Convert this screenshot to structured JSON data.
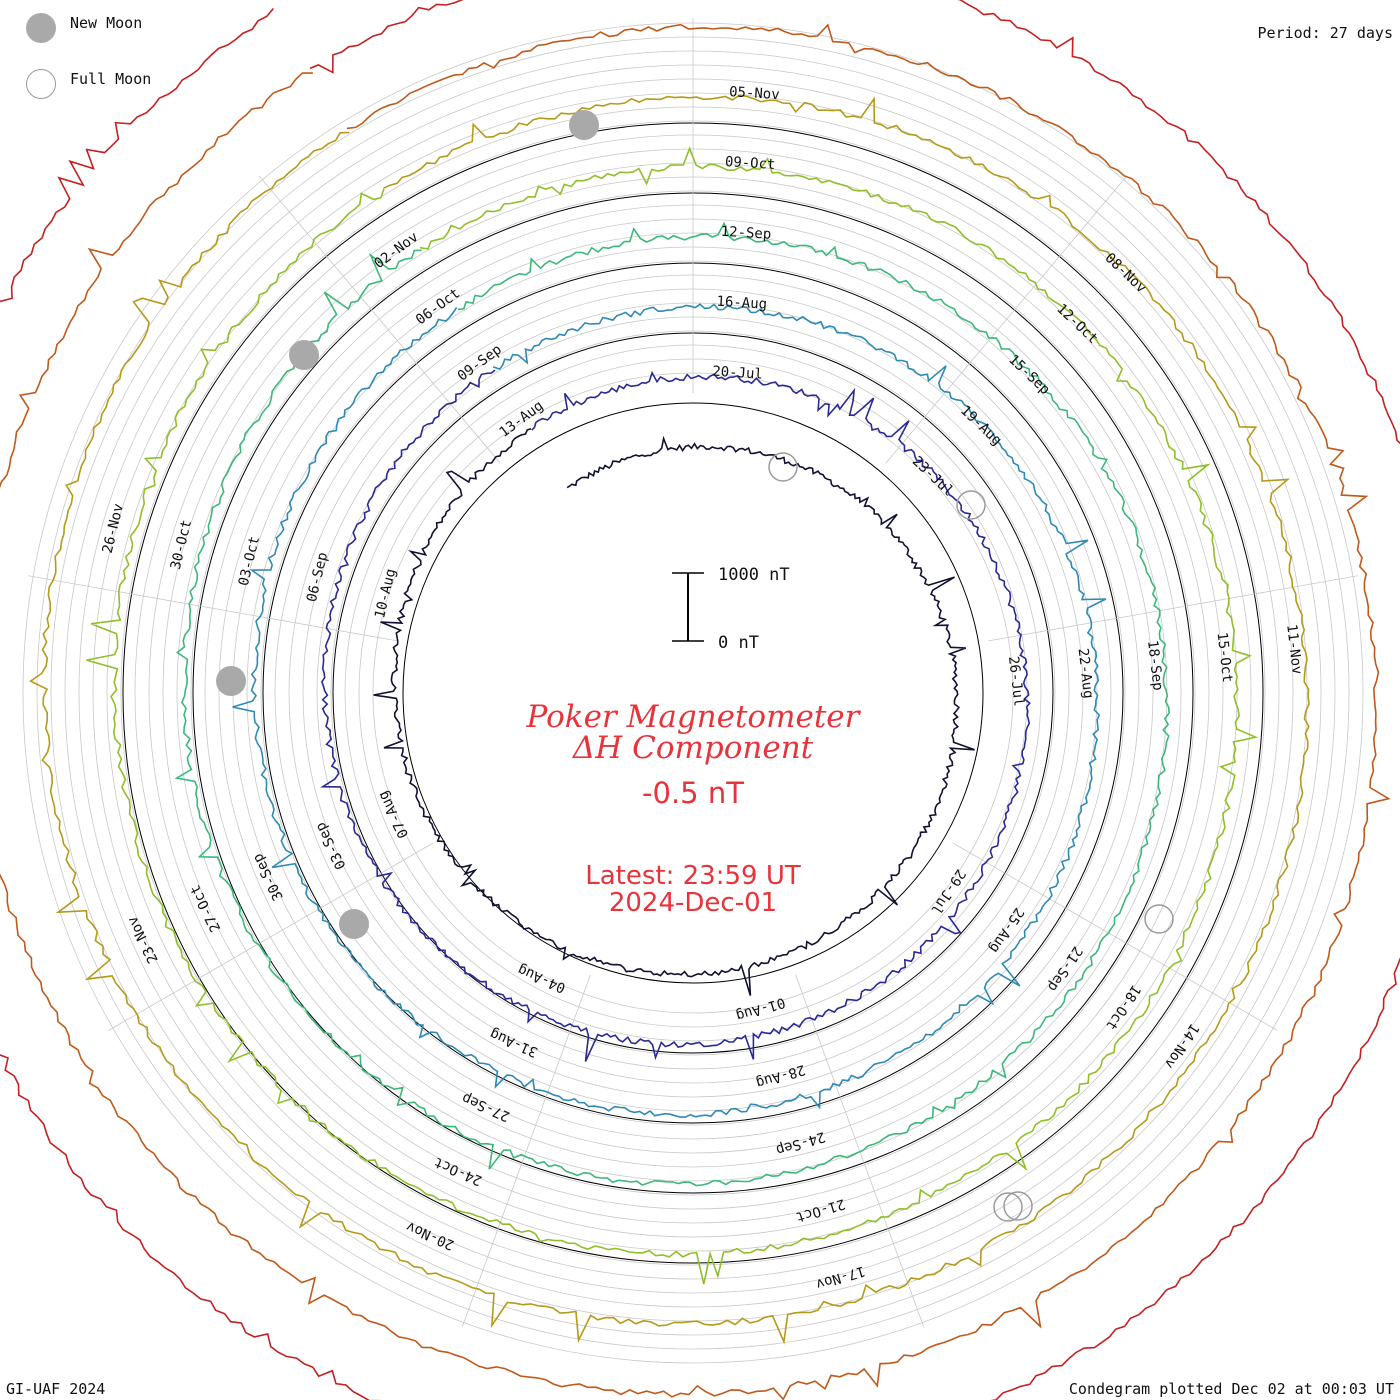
{
  "legend": {
    "new_moon_label": "New Moon",
    "full_moon_label": "Full Moon"
  },
  "header": {
    "period": "Period: 27 days"
  },
  "footer": {
    "credit": "GI-UAF 2024",
    "plotted": "Condegram plotted Dec 02 at 00:03 UT"
  },
  "center": {
    "title_line1": "Poker Magnetometer",
    "title_line2": "ΔH Component",
    "current_value": "-0.5 nT",
    "latest_time": "Latest: 23:59 UT",
    "latest_date": "2024-Dec-01"
  },
  "scale_bar": {
    "top_label": "1000 nT",
    "bottom_label": "0 nT"
  },
  "colors": {
    "title_red": "#e8333a",
    "grid": "#bdbdbd",
    "new_moon": "#a9a9a9",
    "full_moon_stroke": "#9a9a9a"
  },
  "chart_data": {
    "type": "line",
    "title": "Poker Magnetometer ΔH Component",
    "period_days": 27,
    "scale_nT": [
      0,
      1000
    ],
    "grid": true,
    "legend_placement": "top-left",
    "rotations": [
      {
        "color": "#111133",
        "date_labels": [
          "20-Jul",
          "23-Jul",
          "26-Jul",
          "29-Jul",
          "01-Aug",
          "04-Aug",
          "07-Aug",
          "10-Aug",
          "13-Aug"
        ]
      },
      {
        "color": "#2a2a95",
        "date_labels": [
          "16-Aug",
          "19-Aug",
          "22-Aug",
          "25-Aug",
          "28-Aug",
          "31-Aug",
          "03-Sep",
          "06-Sep",
          "09-Sep"
        ]
      },
      {
        "color": "#2e8ab5",
        "date_labels": [
          "12-Sep",
          "15-Sep",
          "18-Sep",
          "21-Sep",
          "24-Sep",
          "27-Sep",
          "30-Sep",
          "03-Oct",
          "06-Oct"
        ]
      },
      {
        "color": "#3cb878",
        "date_labels": [
          "09-Oct",
          "12-Oct",
          "15-Oct",
          "18-Oct",
          "21-Oct",
          "24-Oct",
          "27-Oct",
          "30-Oct",
          "02-Nov"
        ]
      },
      {
        "color": "#8fbf2a",
        "date_labels": [
          "05-Nov",
          "08-Nov",
          "11-Nov",
          "14-Nov",
          "17-Nov",
          "20-Nov",
          "23-Nov",
          "26-Nov"
        ]
      }
    ],
    "series_colors": [
      "#111133",
      "#2a2a95",
      "#2e8ab5",
      "#3cb878",
      "#8fbf2a",
      "#b59a1a",
      "#c0591a",
      "#c42020"
    ]
  }
}
